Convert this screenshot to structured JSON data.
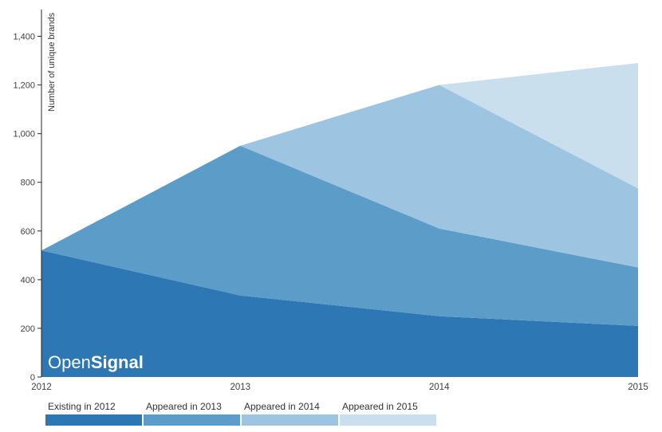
{
  "watermark": {
    "prefix": "Open",
    "suffix": "Signal"
  },
  "chart_data": {
    "type": "area",
    "stacked": true,
    "title": "",
    "xlabel": "",
    "ylabel": "Number of unique brands",
    "x": [
      2012,
      2013,
      2014,
      2015
    ],
    "x_tick_labels": [
      "2012",
      "2013",
      "2014",
      "2015"
    ],
    "yticks": [
      0,
      200,
      400,
      600,
      800,
      1000,
      1200,
      1400
    ],
    "ytick_labels": [
      "0",
      "200",
      "400",
      "600",
      "800",
      "1,000",
      "1,200",
      "1,400"
    ],
    "ylim": [
      0,
      1500
    ],
    "grid": false,
    "legend_position": "bottom",
    "series": [
      {
        "name": "Existing in 2012",
        "color": "#2e77b5",
        "values": [
          520,
          335,
          250,
          210
        ]
      },
      {
        "name": "Appeared in 2013",
        "color": "#5b9cc9",
        "values": [
          0,
          615,
          360,
          240
        ]
      },
      {
        "name": "Appeared in 2014",
        "color": "#9dc4e0",
        "values": [
          0,
          0,
          590,
          325
        ]
      },
      {
        "name": "Appeared in 2015",
        "color": "#cadfee",
        "values": [
          0,
          0,
          0,
          515
        ]
      }
    ],
    "stack_totals": [
      520,
      950,
      1200,
      1290
    ]
  },
  "legend": {
    "items": [
      {
        "label": "Existing in 2012",
        "color": "#2e77b5"
      },
      {
        "label": "Appeared in 2013",
        "color": "#5b9cc9"
      },
      {
        "label": "Appeared in 2014",
        "color": "#9dc4e0"
      },
      {
        "label": "Appeared in 2015",
        "color": "#cadfee"
      }
    ]
  }
}
